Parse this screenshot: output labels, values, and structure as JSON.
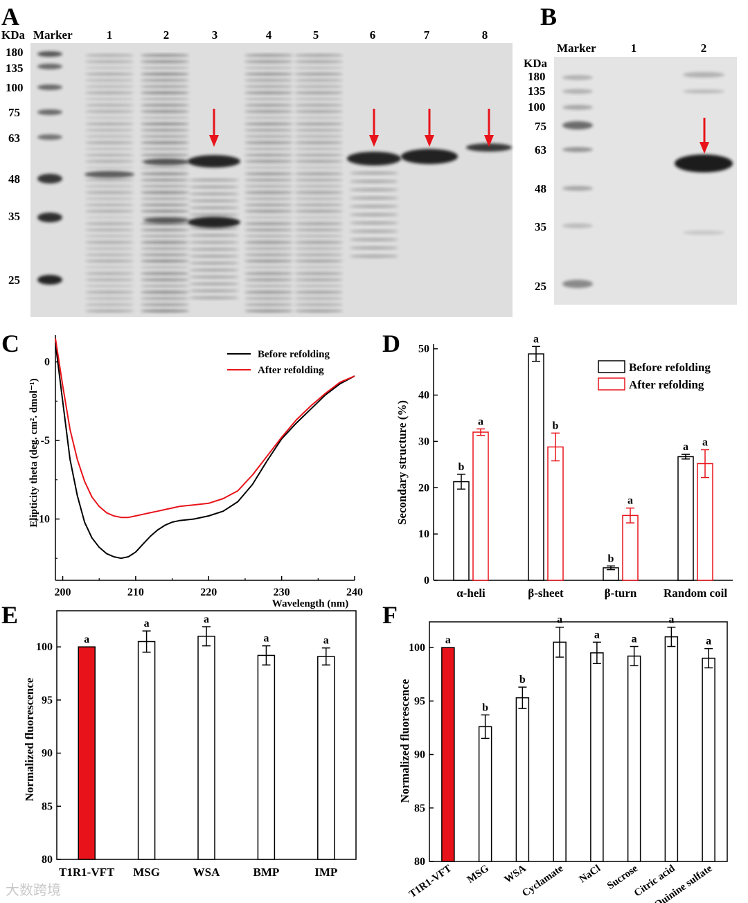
{
  "panels": {
    "A": {
      "letter": "A",
      "unit": "KDa",
      "marker_label": "Marker",
      "lanes": [
        "1",
        "2",
        "3",
        "4",
        "5",
        "6",
        "7",
        "8"
      ],
      "mw_labels": [
        "180",
        "135",
        "100",
        "75",
        "63",
        "48",
        "35",
        "25"
      ]
    },
    "B": {
      "letter": "B",
      "unit": "KDa",
      "marker_label": "Marker",
      "lanes": [
        "1",
        "2"
      ],
      "mw_labels": [
        "180",
        "135",
        "100",
        "75",
        "63",
        "48",
        "35",
        "25"
      ]
    },
    "C": {
      "letter": "C"
    },
    "D": {
      "letter": "D"
    },
    "E": {
      "letter": "E"
    },
    "F": {
      "letter": "F"
    }
  },
  "watermark": "大数跨境",
  "colors": {
    "red": "#e8131a",
    "black": "#000000"
  },
  "chart_data": [
    {
      "panel": "C",
      "type": "line",
      "xlabel": "Wavelength (nm)",
      "ylabel": "Elipticity theta (deg. cm². dmol⁻¹)",
      "xlim": [
        199,
        240
      ],
      "ylim": [
        -13.9,
        1.7
      ],
      "xticks": [
        200,
        210,
        220,
        230,
        240
      ],
      "yticks": [
        0,
        -5,
        -10
      ],
      "ytick_labels": [
        "0",
        "-5",
        "-10"
      ],
      "legend": "top-right",
      "series": [
        {
          "name": "Before refolding",
          "color": "#000000",
          "x": [
            199,
            200,
            201,
            202,
            203,
            204,
            205,
            206,
            207,
            208,
            209,
            210,
            211,
            212,
            213,
            214,
            215,
            216,
            218,
            220,
            222,
            224,
            226,
            228,
            230,
            232,
            234,
            236,
            238,
            240
          ],
          "y": [
            1.2,
            -2.5,
            -6.2,
            -8.5,
            -10.2,
            -11.2,
            -11.8,
            -12.2,
            -12.4,
            -12.5,
            -12.4,
            -12.1,
            -11.6,
            -11.1,
            -10.7,
            -10.4,
            -10.2,
            -10.1,
            -10.0,
            -9.8,
            -9.5,
            -8.9,
            -7.8,
            -6.3,
            -4.9,
            -3.9,
            -3.0,
            -2.1,
            -1.4,
            -0.9
          ]
        },
        {
          "name": "After refolding",
          "color": "#e8131a",
          "x": [
            199,
            200,
            201,
            202,
            203,
            204,
            205,
            206,
            207,
            208,
            209,
            210,
            211,
            212,
            213,
            214,
            215,
            216,
            218,
            220,
            222,
            224,
            226,
            228,
            230,
            232,
            234,
            236,
            238,
            240
          ],
          "y": [
            1.5,
            -1.5,
            -4.3,
            -6.2,
            -7.6,
            -8.6,
            -9.2,
            -9.6,
            -9.8,
            -9.9,
            -9.9,
            -9.8,
            -9.7,
            -9.6,
            -9.5,
            -9.4,
            -9.3,
            -9.2,
            -9.1,
            -9.0,
            -8.7,
            -8.2,
            -7.2,
            -6.0,
            -4.8,
            -3.7,
            -2.8,
            -2.0,
            -1.3,
            -0.9
          ]
        }
      ]
    },
    {
      "panel": "D",
      "type": "bar",
      "ylabel": "Secondary structure (%)",
      "ylim": [
        0,
        51
      ],
      "yticks": [
        0,
        10,
        20,
        30,
        40,
        50
      ],
      "categories": [
        "α-heli",
        "β-sheet",
        "β-turn",
        "Random coil"
      ],
      "legend": "top-right",
      "series": [
        {
          "name": "Before refolding",
          "color": "#000000",
          "values": [
            21.3,
            48.9,
            2.7,
            26.7
          ],
          "errors": [
            1.6,
            1.6,
            0.4,
            0.5
          ],
          "letters": [
            "b",
            "a",
            "b",
            "a"
          ]
        },
        {
          "name": "After refolding",
          "color": "#e8131a",
          "values": [
            32.0,
            28.8,
            14.0,
            25.2
          ],
          "errors": [
            0.7,
            3.0,
            1.6,
            3.0
          ],
          "letters": [
            "a",
            "b",
            "a",
            "a"
          ]
        }
      ]
    },
    {
      "panel": "E",
      "type": "bar",
      "ylabel": "Normalized fluorescence",
      "ylim": [
        80,
        103.4
      ],
      "yticks": [
        80,
        85,
        90,
        95,
        100
      ],
      "categories": [
        "T1R1-VFT",
        "MSG",
        "WSA",
        "BMP",
        "IMP"
      ],
      "values": [
        100.0,
        100.5,
        101.0,
        99.2,
        99.1
      ],
      "errors": [
        0,
        1.0,
        0.9,
        0.9,
        0.8
      ],
      "letters": [
        "a",
        "a",
        "a",
        "a",
        "a"
      ],
      "fill_colors": [
        "#e8131a",
        "#ffffff",
        "#ffffff",
        "#ffffff",
        "#ffffff"
      ]
    },
    {
      "panel": "F",
      "type": "bar",
      "ylabel": "Normalized fluorescence",
      "ylim": [
        80,
        102.4
      ],
      "yticks": [
        80,
        85,
        90,
        95,
        100
      ],
      "categories": [
        "T1R1-VFT",
        "MSG",
        "WSA",
        "Cyclamate",
        "NaCl",
        "Sucrose",
        "Citric acid",
        "Quinine sulfate"
      ],
      "values": [
        100.0,
        92.6,
        95.3,
        100.5,
        99.5,
        99.2,
        101.0,
        99.0
      ],
      "errors": [
        0,
        1.1,
        1.0,
        1.4,
        1.0,
        0.9,
        0.9,
        0.9
      ],
      "letters": [
        "a",
        "b",
        "b",
        "a",
        "a",
        "a",
        "a",
        "a"
      ],
      "fill_colors": [
        "#e8131a",
        "#ffffff",
        "#ffffff",
        "#ffffff",
        "#ffffff",
        "#ffffff",
        "#ffffff",
        "#ffffff"
      ]
    }
  ]
}
